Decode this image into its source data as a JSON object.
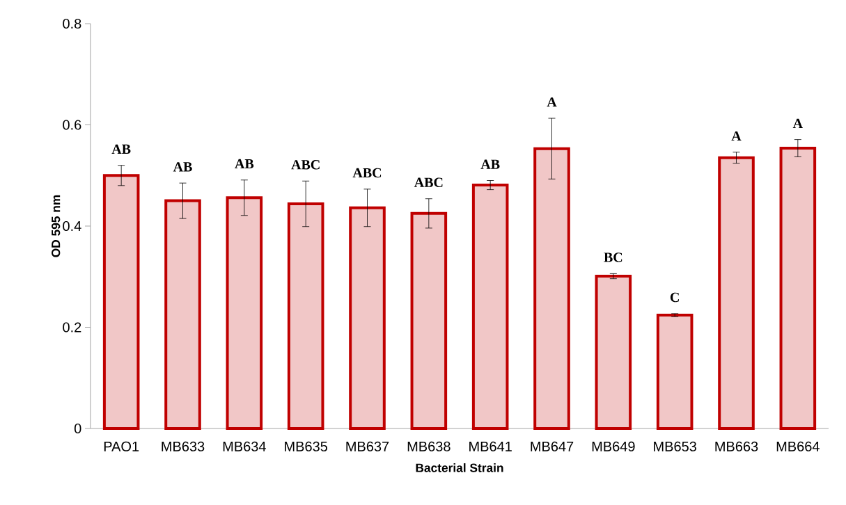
{
  "chart_data": {
    "type": "bar",
    "xlabel": "Bacterial Strain",
    "ylabel": "OD 595 nm",
    "categories": [
      "PAO1",
      "MB633",
      "MB634",
      "MB635",
      "MB637",
      "MB638",
      "MB641",
      "MB647",
      "MB649",
      "MB653",
      "MB663",
      "MB664"
    ],
    "values": [
      0.5,
      0.45,
      0.456,
      0.444,
      0.436,
      0.425,
      0.481,
      0.553,
      0.301,
      0.224,
      0.535,
      0.554
    ],
    "errors": [
      0.02,
      0.035,
      0.035,
      0.045,
      0.037,
      0.029,
      0.009,
      0.06,
      0.005,
      0.003,
      0.011,
      0.017
    ],
    "color": "#c00000",
    "ylim": [
      0,
      0.8
    ],
    "yticks": [
      0,
      0.2,
      0.4,
      0.6,
      0.8
    ],
    "annotations": [
      "AB",
      "AB",
      "AB",
      "ABC",
      "ABC",
      "ABC",
      "AB",
      "A",
      "BC",
      "C",
      "A",
      "A"
    ]
  }
}
